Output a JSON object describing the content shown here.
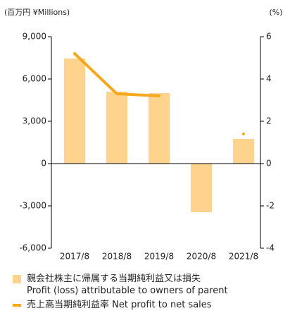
{
  "chart_data": {
    "type": "bar_line",
    "y_label": "(百万円 ¥Millions)",
    "y2_label": "(%)",
    "categories": [
      "2017/8",
      "2018/8",
      "2019/8",
      "2020/8",
      "2021/8"
    ],
    "ylim": [
      -6000,
      9000
    ],
    "yticks": [
      {
        "value": -6000,
        "label": "-6,000"
      },
      {
        "value": -3000,
        "label": "-3,000"
      },
      0,
      {
        "value": 3000,
        "label": "3,000"
      },
      {
        "value": 6000,
        "label": "6,000"
      },
      {
        "value": 9000,
        "label": "9,000"
      }
    ],
    "y2lim": [
      -4,
      6
    ],
    "y2ticks": [
      -4,
      -2,
      0,
      2,
      4,
      6
    ],
    "series": [
      {
        "name": "親会社株主に帰属する当期純利益又は損失\nProfit (loss) attributable to owners of parent",
        "type": "bar",
        "color": "#fdd38e",
        "values": [
          7450,
          5100,
          5000,
          -3450,
          1750
        ]
      },
      {
        "name": "売上高当期純利益率 Net profit to net sales",
        "type": "line",
        "axis": "y2",
        "color": "#f5a81c",
        "values": [
          5.2,
          3.3,
          3.2,
          null,
          1.4
        ]
      }
    ]
  }
}
